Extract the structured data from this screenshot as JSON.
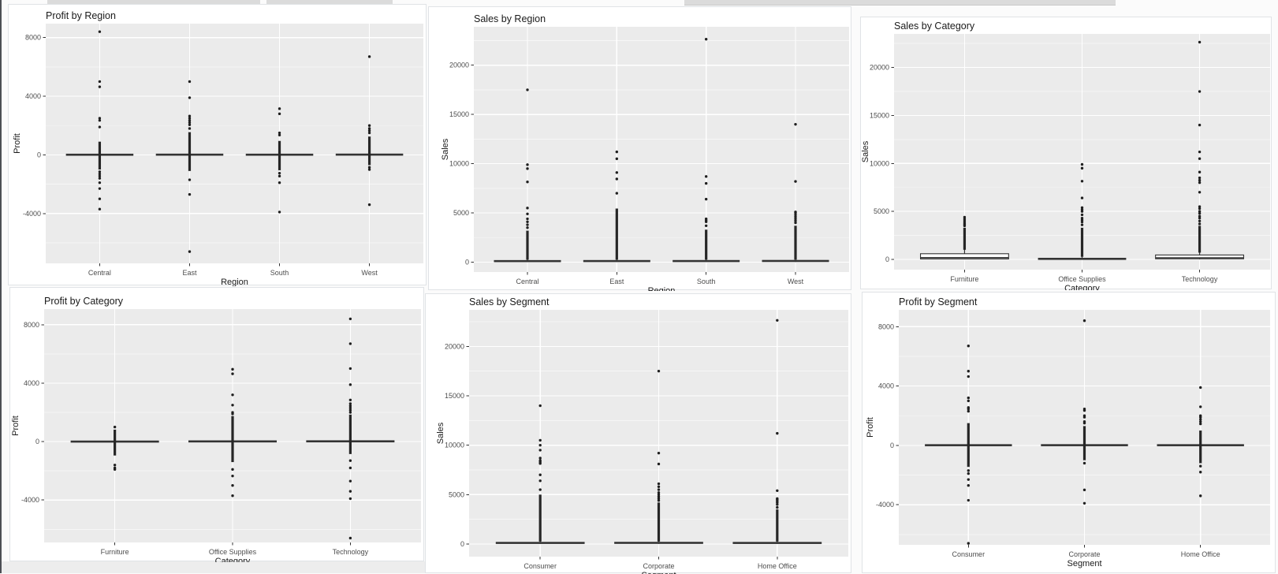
{
  "style": {
    "panel_bg": "#ebebeb",
    "grid_major": "#ffffff",
    "grid_minor": "#f6f6f6",
    "box_stroke": "#333333",
    "box_fill": "#ffffff",
    "point": "#1f1f1f",
    "tick_label": "#4d4d4d",
    "text": "#1a1a1a"
  },
  "chart_data": [
    {
      "id": "profit-by-region",
      "type": "boxplot",
      "title": "Profit by Region",
      "xlabel": "Region",
      "ylabel": "Profit",
      "categories": [
        "Central",
        "East",
        "South",
        "West"
      ],
      "yticks": [
        -4000,
        0,
        4000,
        8000
      ],
      "ylim": [
        -7400,
        8950
      ],
      "grid": true,
      "legend": "none",
      "boxes": [
        {
          "category": "Central",
          "median": 6,
          "q1": -14,
          "q3": 33,
          "whisker_low": -84,
          "whisker_high": 103,
          "outlier_column": [
            -1000,
            900
          ],
          "outliers": [
            1900,
            2350,
            2500,
            4640,
            5000,
            8400,
            -1150,
            -1300,
            -1450,
            -1600,
            -1900,
            -2300,
            -3000,
            -3700
          ]
        },
        {
          "category": "East",
          "median": 8,
          "q1": -10,
          "q3": 38,
          "whisker_low": -80,
          "whisker_high": 110,
          "outlier_column": [
            -1100,
            1550
          ],
          "outliers": [
            1800,
            2050,
            2200,
            2350,
            2500,
            2650,
            3900,
            5000,
            -1700,
            -2700,
            -6600
          ]
        },
        {
          "category": "South",
          "median": 7,
          "q1": -12,
          "q3": 35,
          "whisker_low": -80,
          "whisker_high": 100,
          "outlier_column": [
            -1050,
            950
          ],
          "outliers": [
            1350,
            1500,
            2800,
            3150,
            -1250,
            -1450,
            -1900,
            -3900
          ]
        },
        {
          "category": "West",
          "median": 10,
          "q1": -8,
          "q3": 42,
          "whisker_low": -75,
          "whisker_high": 115,
          "outlier_column": [
            -700,
            1250
          ],
          "outliers": [
            1500,
            1650,
            1800,
            2000,
            6700,
            -850,
            -1000,
            -3400
          ]
        }
      ]
    },
    {
      "id": "sales-by-region",
      "type": "boxplot",
      "title": "Sales by Region",
      "xlabel": "Region",
      "ylabel": "Sales",
      "categories": [
        "Central",
        "East",
        "South",
        "West"
      ],
      "yticks": [
        0,
        5000,
        10000,
        15000,
        20000
      ],
      "ylim": [
        -1000,
        23900
      ],
      "grid": true,
      "legend": "none",
      "boxes": [
        {
          "category": "Central",
          "median": 46,
          "q1": 15,
          "q3": 200,
          "whisker_low": 1,
          "whisker_high": 470,
          "outlier_column": [
            250,
            3200
          ],
          "outliers": [
            3500,
            3800,
            4100,
            4400,
            4900,
            5500,
            8150,
            9500,
            9900,
            17500
          ]
        },
        {
          "category": "East",
          "median": 54,
          "q1": 16,
          "q3": 210,
          "whisker_low": 1,
          "whisker_high": 500,
          "outlier_column": [
            250,
            5450
          ],
          "outliers": [
            7000,
            8450,
            9100,
            10500,
            11200
          ]
        },
        {
          "category": "South",
          "median": 54,
          "q1": 17,
          "q3": 210,
          "whisker_low": 1,
          "whisker_high": 495,
          "outlier_column": [
            250,
            3300
          ],
          "outliers": [
            3700,
            4100,
            4250,
            4400,
            6400,
            8000,
            8700,
            22640
          ]
        },
        {
          "category": "West",
          "median": 60,
          "q1": 19,
          "q3": 225,
          "whisker_low": 1,
          "whisker_high": 530,
          "outlier_column": [
            250,
            3700
          ],
          "outliers": [
            4000,
            4200,
            4400,
            4600,
            4800,
            5000,
            5100,
            8200,
            14000
          ]
        }
      ]
    },
    {
      "id": "sales-by-category",
      "type": "boxplot",
      "title": "Sales by Category",
      "xlabel": "Category",
      "ylabel": "Sales",
      "categories": [
        "Furniture",
        "Office Supplies",
        "Technology"
      ],
      "yticks": [
        0,
        5000,
        10000,
        15000,
        20000
      ],
      "ylim": [
        -1070,
        23500
      ],
      "grid": true,
      "legend": "none",
      "boxes": [
        {
          "category": "Furniture",
          "median": 182,
          "q1": 47,
          "q3": 590,
          "whisker_low": 2,
          "whisker_high": 1400,
          "outlier_column": [
            1000,
            3300
          ],
          "outliers": [
            3500,
            3650,
            3800,
            4000,
            4200,
            4400
          ]
        },
        {
          "category": "Office Supplies",
          "median": 27,
          "q1": 9,
          "q3": 104,
          "whisker_low": 1,
          "whisker_high": 245,
          "outlier_column": [
            260,
            3300
          ],
          "outliers": [
            3600,
            3900,
            4100,
            4300,
            4650,
            5000,
            5200,
            5400,
            6400,
            8150,
            9500,
            9900
          ]
        },
        {
          "category": "Technology",
          "median": 156,
          "q1": 62,
          "q3": 460,
          "whisker_low": 1,
          "whisker_high": 1050,
          "outlier_column": [
            700,
            3500
          ],
          "outliers": [
            3700,
            4000,
            4300,
            4500,
            4800,
            5000,
            5300,
            5500,
            7000,
            8000,
            8250,
            8500,
            9100,
            10500,
            11200,
            14000,
            17500,
            22640
          ]
        }
      ]
    },
    {
      "id": "profit-by-category",
      "type": "boxplot",
      "title": "Profit by Category",
      "xlabel": "Category",
      "ylabel": "Profit",
      "categories": [
        "Furniture",
        "Office Supplies",
        "Technology"
      ],
      "yticks": [
        -4000,
        0,
        4000,
        8000
      ],
      "ylim": [
        -6900,
        9070
      ],
      "grid": true,
      "legend": "none",
      "boxes": [
        {
          "category": "Furniture",
          "median": 4,
          "q1": -18,
          "q3": 24,
          "whisker_low": -80,
          "whisker_high": 85,
          "outlier_column": [
            -950,
            820
          ],
          "outliers": [
            1000,
            -1600,
            -1800,
            -1900
          ]
        },
        {
          "category": "Office Supplies",
          "median": 8,
          "q1": 2,
          "q3": 29,
          "whisker_low": -38,
          "whisker_high": 70,
          "outlier_column": [
            -1400,
            1750
          ],
          "outliers": [
            1900,
            2000,
            2500,
            3200,
            4640,
            4950,
            -1900,
            -2350,
            -3000,
            -3700
          ]
        },
        {
          "category": "Technology",
          "median": 9,
          "q1": -4,
          "q3": 46,
          "whisker_low": -78,
          "whisker_high": 120,
          "outlier_column": [
            -850,
            1850
          ],
          "outliers": [
            2000,
            2150,
            2300,
            2450,
            2600,
            2850,
            3900,
            5000,
            6700,
            8400,
            -1300,
            -1800,
            -2700,
            -3400,
            -3900,
            -6600
          ]
        }
      ]
    },
    {
      "id": "sales-by-segment",
      "type": "boxplot",
      "title": "Sales by Segment",
      "xlabel": "Segment",
      "ylabel": "Sales",
      "categories": [
        "Consumer",
        "Corporate",
        "Home Office"
      ],
      "yticks": [
        0,
        5000,
        10000,
        15000,
        20000
      ],
      "ylim": [
        -1280,
        23700
      ],
      "grid": true,
      "legend": "none",
      "boxes": [
        {
          "category": "Consumer",
          "median": 50,
          "q1": 16,
          "q3": 205,
          "whisker_low": 1,
          "whisker_high": 485,
          "outlier_column": [
            250,
            5000
          ],
          "outliers": [
            5500,
            6400,
            7000,
            8150,
            8300,
            8450,
            8700,
            9500,
            10000,
            10500,
            14000
          ]
        },
        {
          "category": "Corporate",
          "median": 54,
          "q1": 17,
          "q3": 215,
          "whisker_low": 1,
          "whisker_high": 505,
          "outlier_column": [
            250,
            4200
          ],
          "outliers": [
            4400,
            4600,
            4800,
            5000,
            5200,
            5500,
            5800,
            6100,
            8100,
            9200,
            17500
          ]
        },
        {
          "category": "Home Office",
          "median": 52,
          "q1": 16,
          "q3": 200,
          "whisker_low": 1,
          "whisker_high": 480,
          "outlier_column": [
            250,
            3500
          ],
          "outliers": [
            3700,
            4000,
            4200,
            4350,
            4500,
            4600,
            5400,
            11200,
            22640
          ]
        }
      ]
    },
    {
      "id": "profit-by-segment",
      "type": "boxplot",
      "title": "Profit by Segment",
      "xlabel": "Segment",
      "ylabel": "Profit",
      "categories": [
        "Consumer",
        "Corporate",
        "Home Office"
      ],
      "yticks": [
        -4000,
        0,
        4000,
        8000
      ],
      "ylim": [
        -6700,
        9130
      ],
      "grid": true,
      "legend": "none",
      "boxes": [
        {
          "category": "Consumer",
          "median": 7,
          "q1": -12,
          "q3": 35,
          "whisker_low": -82,
          "whisker_high": 105,
          "outlier_column": [
            -1450,
            1500
          ],
          "outliers": [
            2300,
            2450,
            2550,
            3000,
            3200,
            4640,
            5000,
            6700,
            -1700,
            -1900,
            -2300,
            -2700,
            -3700,
            -6600
          ]
        },
        {
          "category": "Corporate",
          "median": 8,
          "q1": -10,
          "q3": 36,
          "whisker_low": -80,
          "whisker_high": 108,
          "outlier_column": [
            -1000,
            1300
          ],
          "outliers": [
            1500,
            1600,
            1900,
            2000,
            2350,
            2450,
            8400,
            -1200,
            -3000,
            -3900
          ]
        },
        {
          "category": "Home Office",
          "median": 7,
          "q1": -11,
          "q3": 34,
          "whisker_low": -78,
          "whisker_high": 100,
          "outlier_column": [
            -1200,
            1000
          ],
          "outliers": [
            1450,
            1600,
            1750,
            1900,
            2000,
            2600,
            3900,
            -1400,
            -1800,
            -3400
          ]
        }
      ]
    }
  ]
}
